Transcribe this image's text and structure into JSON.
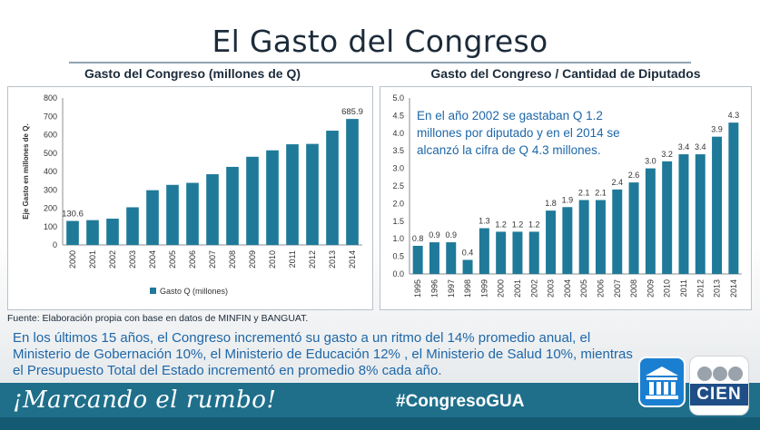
{
  "slide": {
    "title": "El Gasto del Congreso",
    "left_chart_heading": "Gasto del Congreso (millones de Q)",
    "right_chart_heading": "Gasto del Congreso / Cantidad de Diputados",
    "source": "Fuente: Elaboración propia con base en datos de MINFIN y BANGUAT.",
    "summary": "En los últimos 15 años, el Congreso incrementó su gasto a un ritmo del 14% promedio anual, el Ministerio de Gobernación 10%, el Ministerio de Educación 12% , el Ministerio de Salud 10%, mientras el Presupuesto Total del Estado incrementó en promedio 8% cada año.",
    "slogan": "¡Marcando el rumbo!",
    "hashtag": "#CongresoGUA",
    "cien_label": "CIEN"
  },
  "colors": {
    "bar": "#1f7a99",
    "annotation": "#1e67a8",
    "footer": "#1f6f8b"
  },
  "chart_data": [
    {
      "type": "bar",
      "title": "Gasto del Congreso (millones de Q)",
      "categories": [
        "2000",
        "2001",
        "2002",
        "2003",
        "2004",
        "2005",
        "2006",
        "2007",
        "2008",
        "2009",
        "2010",
        "2011",
        "2012",
        "2013",
        "2014"
      ],
      "series": [
        {
          "name": "Gasto Q (millones)",
          "values": [
            130.6,
            135,
            143,
            205,
            298,
            327,
            338,
            385,
            425,
            480,
            515,
            548,
            550,
            622,
            685.9
          ]
        }
      ],
      "data_labels": {
        "0": "130.6",
        "14": "685.9"
      },
      "ylabel": "Eje Gasto en millones de Q.",
      "ylim": [
        0,
        800
      ],
      "yticks": [
        0,
        100,
        200,
        300,
        400,
        500,
        600,
        700,
        800
      ],
      "ytick_labels": [
        "0",
        "100",
        "200",
        "300",
        "400",
        "500",
        "600",
        "700",
        "800"
      ],
      "legend": "bottom",
      "grid": false
    },
    {
      "type": "bar",
      "title": "Gasto del Congreso / Cantidad de Diputados",
      "categories": [
        "1995",
        "1996",
        "1997",
        "1998",
        "1999",
        "2000",
        "2001",
        "2002",
        "2003",
        "2004",
        "2005",
        "2006",
        "2007",
        "2008",
        "2009",
        "2010",
        "2011",
        "2012",
        "2013",
        "2014"
      ],
      "values": [
        0.8,
        0.9,
        0.9,
        0.4,
        1.3,
        1.2,
        1.2,
        1.2,
        1.8,
        1.9,
        2.1,
        2.1,
        2.4,
        2.6,
        3.0,
        3.2,
        3.4,
        3.4,
        3.9,
        4.3
      ],
      "value_labels": [
        "0.8",
        "0.9",
        "0.9",
        "0.4",
        "1.3",
        "1.2",
        "1.2",
        "1.2",
        "1.8",
        "1.9",
        "2.1",
        "2.1",
        "2.4",
        "2.6",
        "3.0",
        "3.2",
        "3.4",
        "3.4",
        "3.9",
        "4.3"
      ],
      "ylim": [
        0,
        5
      ],
      "yticks": [
        0,
        0.5,
        1,
        1.5,
        2,
        2.5,
        3,
        3.5,
        4,
        4.5,
        5
      ],
      "ytick_labels": [
        "0.0",
        "0.5",
        "1.0",
        "1.5",
        "2.0",
        "2.5",
        "3.0",
        "3.5",
        "4.0",
        "4.5",
        "5.0"
      ],
      "annotation": [
        "En el año 2002 se gastaban Q 1.2",
        "millones por diputado y en el 2014 se",
        "alcanzó la cifra de Q 4.3 millones."
      ],
      "grid": false
    }
  ]
}
